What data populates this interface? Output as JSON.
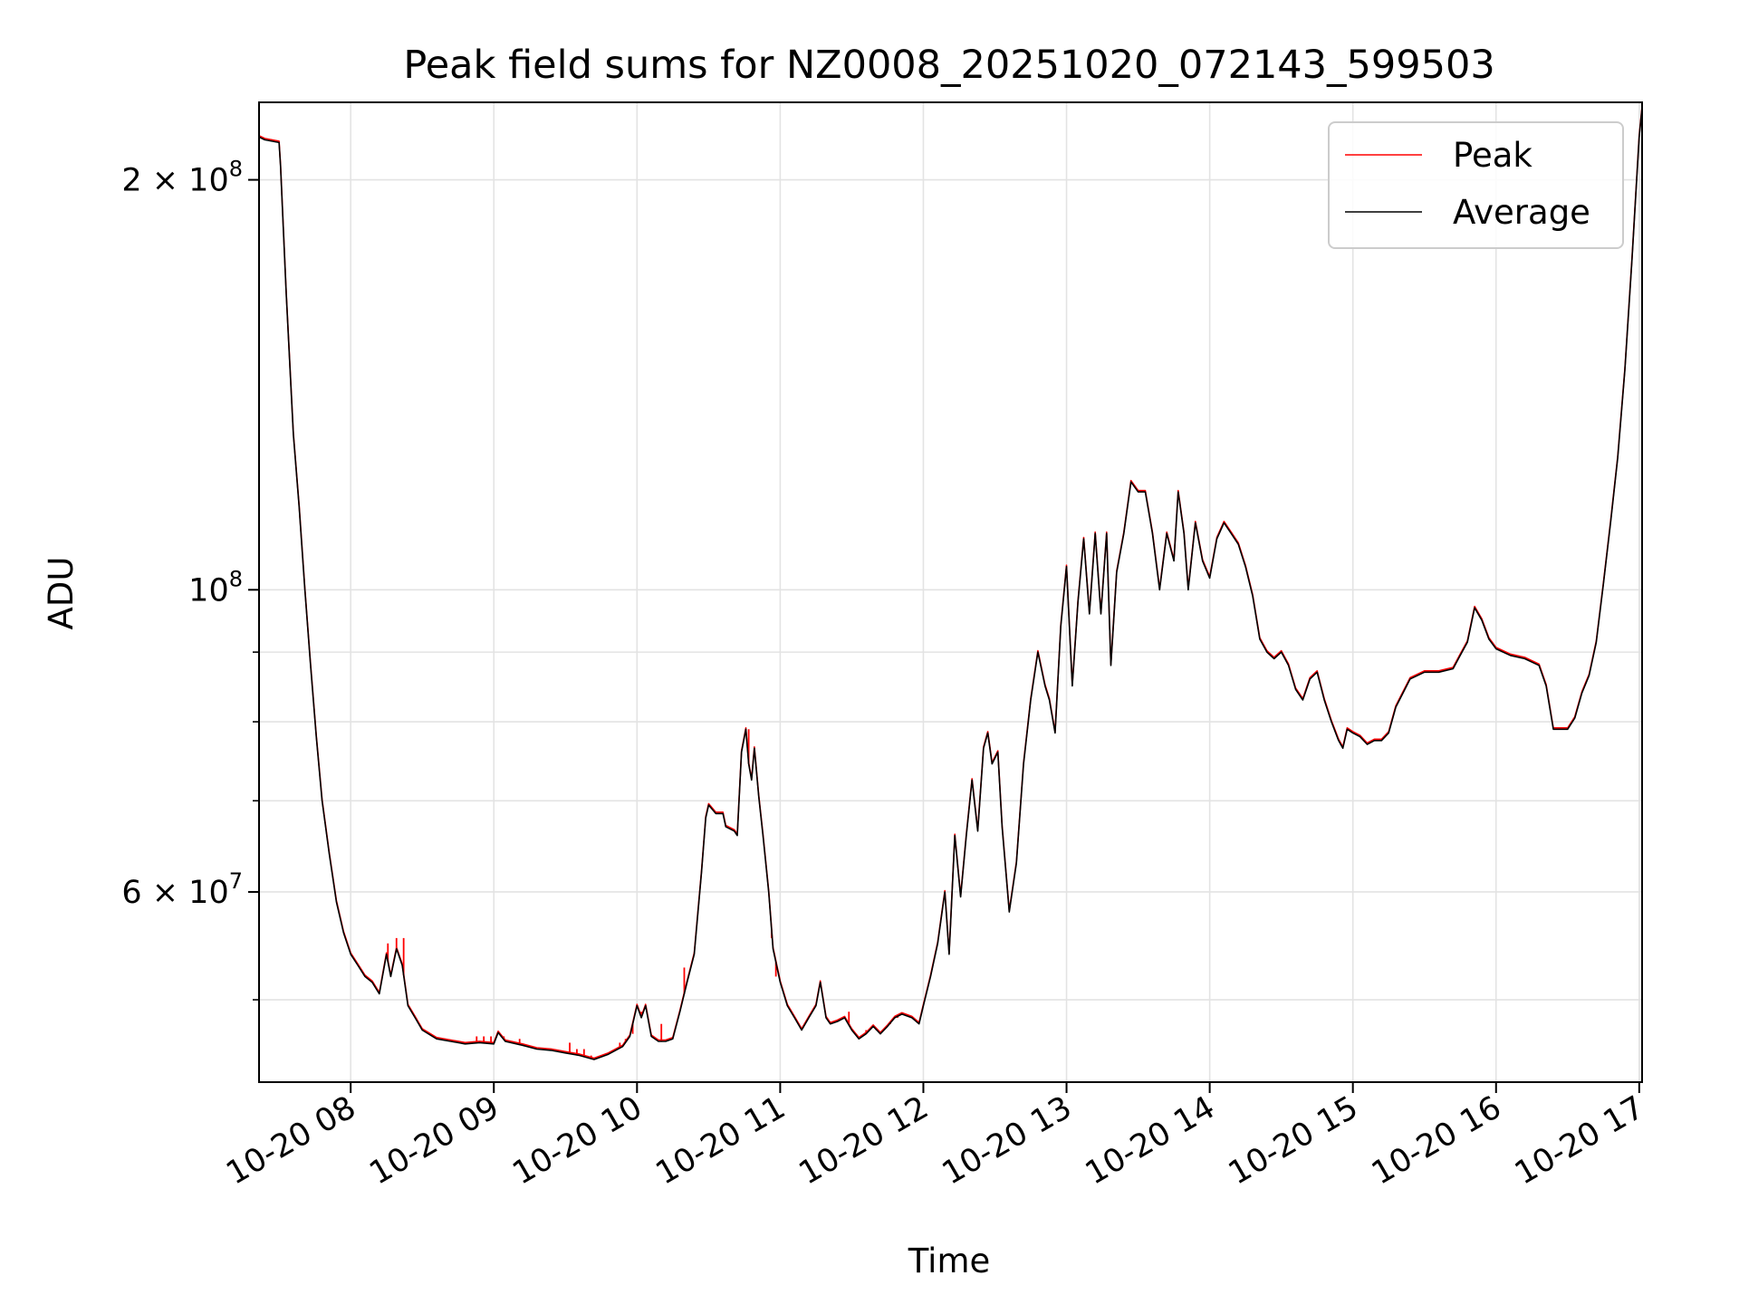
{
  "chart_data": {
    "type": "line",
    "title": "Peak field sums for NZ0008_20251020_072143_599503",
    "xlabel": "Time",
    "ylabel": "ADU",
    "x_unit": "hours since 10-20 00:00",
    "xlim": [
      7.36,
      17.02
    ],
    "ylim": [
      43500000,
      228000000
    ],
    "yscale": "log",
    "grid": true,
    "legend_position": "upper right",
    "x_ticks": [
      8,
      9,
      10,
      11,
      12,
      13,
      14,
      15,
      16,
      17
    ],
    "x_tick_labels": [
      "10-20 08",
      "10-20 09",
      "10-20 10",
      "10-20 11",
      "10-20 12",
      "10-20 13",
      "10-20 14",
      "10-20 15",
      "10-20 16",
      "10-20 17"
    ],
    "y_major_ticks": [
      {
        "value": 200000000,
        "base": "2 × 10",
        "exp": "8"
      },
      {
        "value": 100000000,
        "base": "10",
        "exp": "8"
      },
      {
        "value": 60000000,
        "base": "6 × 10",
        "exp": "7"
      }
    ],
    "y_minor_ticks": [
      50000000,
      70000000,
      80000000,
      90000000
    ],
    "series": [
      {
        "name": "Peak",
        "color": "#ff0000",
        "spikes": [
          [
            8.26,
            55000000
          ],
          [
            8.32,
            55500000
          ],
          [
            8.37,
            55500000
          ],
          [
            8.88,
            47000000
          ],
          [
            8.93,
            47000000
          ],
          [
            8.98,
            47000000
          ],
          [
            9.07,
            47000000
          ],
          [
            9.18,
            46800000
          ],
          [
            9.53,
            46500000
          ],
          [
            9.58,
            46000000
          ],
          [
            9.63,
            46000000
          ],
          [
            9.68,
            45500000
          ],
          [
            9.88,
            46500000
          ],
          [
            9.92,
            46800000
          ],
          [
            9.97,
            47200000
          ],
          [
            10.03,
            49000000
          ],
          [
            10.17,
            48000000
          ],
          [
            10.33,
            52800000
          ],
          [
            10.78,
            79000000
          ],
          [
            10.94,
            55500000
          ],
          [
            10.97,
            52000000
          ],
          [
            11.48,
            49000000
          ],
          [
            11.6,
            47500000
          ],
          [
            11.67,
            47500000
          ],
          [
            11.77,
            48000000
          ],
          [
            11.82,
            48500000
          ]
        ]
      },
      {
        "name": "Average",
        "color": "#000000",
        "points": [
          [
            7.36,
            215000000
          ],
          [
            7.4,
            214000000
          ],
          [
            7.45,
            213500000
          ],
          [
            7.5,
            213000000
          ],
          [
            7.51,
            205000000
          ],
          [
            7.55,
            165000000
          ],
          [
            7.6,
            130000000
          ],
          [
            7.64,
            115000000
          ],
          [
            7.68,
            100000000
          ],
          [
            7.72,
            88000000
          ],
          [
            7.76,
            78000000
          ],
          [
            7.8,
            70000000
          ],
          [
            7.85,
            64000000
          ],
          [
            7.9,
            59000000
          ],
          [
            7.95,
            56000000
          ],
          [
            8.0,
            54000000
          ],
          [
            8.05,
            53000000
          ],
          [
            8.1,
            52000000
          ],
          [
            8.15,
            51500000
          ],
          [
            8.2,
            50500000
          ],
          [
            8.25,
            54000000
          ],
          [
            8.28,
            52000000
          ],
          [
            8.32,
            54500000
          ],
          [
            8.36,
            53000000
          ],
          [
            8.4,
            49500000
          ],
          [
            8.45,
            48500000
          ],
          [
            8.5,
            47500000
          ],
          [
            8.6,
            46800000
          ],
          [
            8.7,
            46600000
          ],
          [
            8.8,
            46400000
          ],
          [
            8.9,
            46500000
          ],
          [
            9.0,
            46400000
          ],
          [
            9.03,
            47300000
          ],
          [
            9.08,
            46600000
          ],
          [
            9.2,
            46300000
          ],
          [
            9.3,
            46000000
          ],
          [
            9.4,
            45900000
          ],
          [
            9.5,
            45700000
          ],
          [
            9.6,
            45500000
          ],
          [
            9.7,
            45200000
          ],
          [
            9.8,
            45600000
          ],
          [
            9.9,
            46200000
          ],
          [
            9.95,
            47000000
          ],
          [
            10.0,
            49500000
          ],
          [
            10.03,
            48500000
          ],
          [
            10.06,
            49500000
          ],
          [
            10.1,
            47000000
          ],
          [
            10.15,
            46600000
          ],
          [
            10.2,
            46600000
          ],
          [
            10.25,
            46800000
          ],
          [
            10.3,
            49000000
          ],
          [
            10.35,
            51500000
          ],
          [
            10.4,
            54000000
          ],
          [
            10.45,
            62000000
          ],
          [
            10.48,
            68000000
          ],
          [
            10.5,
            69500000
          ],
          [
            10.55,
            68500000
          ],
          [
            10.6,
            68500000
          ],
          [
            10.62,
            67000000
          ],
          [
            10.68,
            66500000
          ],
          [
            10.7,
            66000000
          ],
          [
            10.73,
            76000000
          ],
          [
            10.76,
            79000000
          ],
          [
            10.78,
            74500000
          ],
          [
            10.8,
            72500000
          ],
          [
            10.82,
            76500000
          ],
          [
            10.85,
            70500000
          ],
          [
            10.88,
            66000000
          ],
          [
            10.92,
            60000000
          ],
          [
            10.95,
            54500000
          ],
          [
            11.0,
            51500000
          ],
          [
            11.05,
            49500000
          ],
          [
            11.1,
            48500000
          ],
          [
            11.15,
            47500000
          ],
          [
            11.2,
            48500000
          ],
          [
            11.25,
            49500000
          ],
          [
            11.28,
            51500000
          ],
          [
            11.32,
            48500000
          ],
          [
            11.35,
            48000000
          ],
          [
            11.4,
            48200000
          ],
          [
            11.45,
            48500000
          ],
          [
            11.5,
            47500000
          ],
          [
            11.55,
            46800000
          ],
          [
            11.6,
            47200000
          ],
          [
            11.65,
            47800000
          ],
          [
            11.7,
            47200000
          ],
          [
            11.75,
            47800000
          ],
          [
            11.8,
            48500000
          ],
          [
            11.85,
            48800000
          ],
          [
            11.92,
            48500000
          ],
          [
            11.97,
            48000000
          ],
          [
            12.0,
            49500000
          ],
          [
            12.05,
            52000000
          ],
          [
            12.1,
            55000000
          ],
          [
            12.15,
            60000000
          ],
          [
            12.18,
            54000000
          ],
          [
            12.22,
            66000000
          ],
          [
            12.26,
            59500000
          ],
          [
            12.3,
            66000000
          ],
          [
            12.34,
            72500000
          ],
          [
            12.38,
            66500000
          ],
          [
            12.42,
            76500000
          ],
          [
            12.45,
            78500000
          ],
          [
            12.48,
            74500000
          ],
          [
            12.52,
            76000000
          ],
          [
            12.55,
            67000000
          ],
          [
            12.6,
            58000000
          ],
          [
            12.65,
            63000000
          ],
          [
            12.7,
            74500000
          ],
          [
            12.75,
            83000000
          ],
          [
            12.8,
            90000000
          ],
          [
            12.85,
            85000000
          ],
          [
            12.88,
            83000000
          ],
          [
            12.92,
            78500000
          ],
          [
            12.96,
            94000000
          ],
          [
            13.0,
            104000000
          ],
          [
            13.04,
            85000000
          ],
          [
            13.08,
            98000000
          ],
          [
            13.12,
            109000000
          ],
          [
            13.16,
            96000000
          ],
          [
            13.2,
            110000000
          ],
          [
            13.24,
            96000000
          ],
          [
            13.28,
            110000000
          ],
          [
            13.31,
            88000000
          ],
          [
            13.35,
            103000000
          ],
          [
            13.4,
            110000000
          ],
          [
            13.45,
            120000000
          ],
          [
            13.5,
            118000000
          ],
          [
            13.55,
            118000000
          ],
          [
            13.6,
            110000000
          ],
          [
            13.65,
            100000000
          ],
          [
            13.7,
            110000000
          ],
          [
            13.75,
            105000000
          ],
          [
            13.78,
            118000000
          ],
          [
            13.82,
            110000000
          ],
          [
            13.85,
            100000000
          ],
          [
            13.9,
            112000000
          ],
          [
            13.95,
            105000000
          ],
          [
            14.0,
            102000000
          ],
          [
            14.05,
            109000000
          ],
          [
            14.1,
            112000000
          ],
          [
            14.15,
            110000000
          ],
          [
            14.2,
            108000000
          ],
          [
            14.25,
            104000000
          ],
          [
            14.3,
            99000000
          ],
          [
            14.35,
            92000000
          ],
          [
            14.4,
            90000000
          ],
          [
            14.45,
            89000000
          ],
          [
            14.5,
            90000000
          ],
          [
            14.55,
            88000000
          ],
          [
            14.6,
            84500000
          ],
          [
            14.65,
            83000000
          ],
          [
            14.7,
            86000000
          ],
          [
            14.75,
            87000000
          ],
          [
            14.8,
            83000000
          ],
          [
            14.85,
            80000000
          ],
          [
            14.9,
            77500000
          ],
          [
            14.93,
            76500000
          ],
          [
            14.96,
            79000000
          ],
          [
            15.0,
            78500000
          ],
          [
            15.05,
            78000000
          ],
          [
            15.1,
            77000000
          ],
          [
            15.15,
            77500000
          ],
          [
            15.2,
            77500000
          ],
          [
            15.25,
            78500000
          ],
          [
            15.3,
            82000000
          ],
          [
            15.4,
            86000000
          ],
          [
            15.5,
            87000000
          ],
          [
            15.6,
            87000000
          ],
          [
            15.7,
            87500000
          ],
          [
            15.75,
            89500000
          ],
          [
            15.8,
            91500000
          ],
          [
            15.85,
            97000000
          ],
          [
            15.9,
            95000000
          ],
          [
            15.95,
            92000000
          ],
          [
            16.0,
            90500000
          ],
          [
            16.1,
            89500000
          ],
          [
            16.2,
            89000000
          ],
          [
            16.3,
            88000000
          ],
          [
            16.35,
            85000000
          ],
          [
            16.4,
            79000000
          ],
          [
            16.45,
            79000000
          ],
          [
            16.5,
            79000000
          ],
          [
            16.55,
            80500000
          ],
          [
            16.6,
            84000000
          ],
          [
            16.65,
            86500000
          ],
          [
            16.7,
            91500000
          ],
          [
            16.75,
            101000000
          ],
          [
            16.8,
            112000000
          ],
          [
            16.85,
            125000000
          ],
          [
            16.9,
            145000000
          ],
          [
            16.95,
            175000000
          ],
          [
            17.0,
            215000000
          ],
          [
            17.02,
            226000000
          ]
        ]
      }
    ]
  }
}
